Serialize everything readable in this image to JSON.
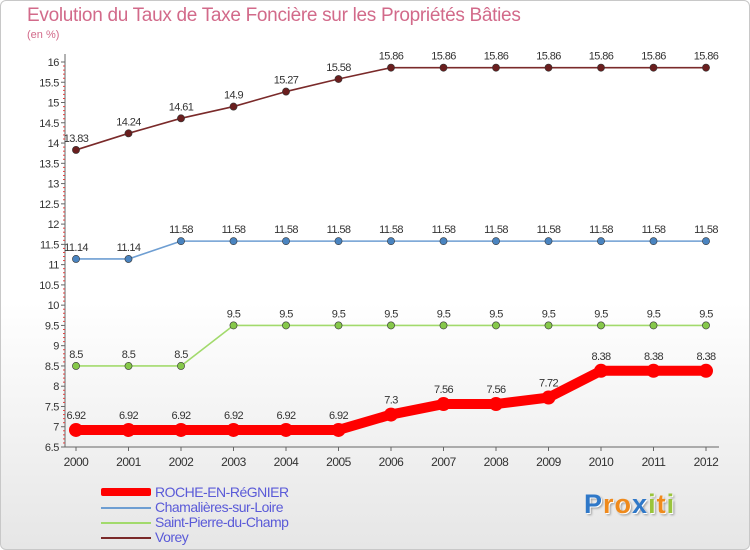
{
  "chart_data": {
    "type": "line",
    "title": "Evolution du Taux de Taxe Foncière sur les Propriétés Bâties",
    "ylabel": "(en %)",
    "xlabel": "",
    "x": [
      "2000",
      "2001",
      "2002",
      "2003",
      "2004",
      "2005",
      "2006",
      "2007",
      "2008",
      "2009",
      "2010",
      "2011",
      "2012"
    ],
    "ylim": [
      6.5,
      16
    ],
    "yticks": [
      "6.5",
      "7",
      "7.5",
      "8",
      "8.5",
      "9",
      "9.5",
      "10",
      "10.5",
      "11",
      "11.5",
      "12",
      "12.5",
      "13",
      "13.5",
      "14",
      "14.5",
      "15",
      "15.5",
      "16"
    ],
    "grid": false,
    "legend_position": "bottom-left",
    "series": [
      {
        "name": "ROCHE-EN-RéGNIER",
        "color": "#ff0000",
        "values": [
          6.92,
          6.92,
          6.92,
          6.92,
          6.92,
          6.92,
          7.3,
          7.56,
          7.56,
          7.72,
          8.38,
          8.38,
          8.38
        ],
        "labels": [
          "6.92",
          "6.92",
          "6.92",
          "6.92",
          "6.92",
          "6.92",
          "7.3",
          "7.56",
          "7.56",
          "7.72",
          "8.38",
          "8.38",
          "8.38"
        ]
      },
      {
        "name": "Chamalières-sur-Loire",
        "color": "#6e9ed2",
        "marker_color": "#4a84c0",
        "values": [
          11.14,
          11.14,
          11.58,
          11.58,
          11.58,
          11.58,
          11.58,
          11.58,
          11.58,
          11.58,
          11.58,
          11.58,
          11.58
        ],
        "labels": [
          "11.14",
          "11.14",
          "11.58",
          "11.58",
          "11.58",
          "11.58",
          "11.58",
          "11.58",
          "11.58",
          "11.58",
          "11.58",
          "11.58",
          "11.58"
        ]
      },
      {
        "name": "Saint-Pierre-du-Champ",
        "color": "#a2da6c",
        "marker_color": "#86c84a",
        "values": [
          8.5,
          8.5,
          8.5,
          9.5,
          9.5,
          9.5,
          9.5,
          9.5,
          9.5,
          9.5,
          9.5,
          9.5,
          9.5
        ],
        "labels": [
          "8.5",
          "8.5",
          "8.5",
          "9.5",
          "9.5",
          "9.5",
          "9.5",
          "9.5",
          "9.5",
          "9.5",
          "9.5",
          "9.5",
          "9.5"
        ]
      },
      {
        "name": "Vorey",
        "color": "#7a2a2a",
        "marker_color": "#6a1e1e",
        "values": [
          13.83,
          14.24,
          14.61,
          14.9,
          15.27,
          15.58,
          15.86,
          15.86,
          15.86,
          15.86,
          15.86,
          15.86,
          15.86
        ],
        "labels": [
          "13.83",
          "14.24",
          "14.61",
          "14.9",
          "15.27",
          "15.58",
          "15.86",
          "15.86",
          "15.86",
          "15.86",
          "15.86",
          "15.86",
          "15.86"
        ]
      }
    ]
  },
  "logo": {
    "letters": [
      "P",
      "r",
      "o",
      "x",
      "i",
      "t",
      "i"
    ],
    "colors": [
      "#2f78c8",
      "#ef8a1c",
      "#ef8a1c",
      "#2f78c8",
      "#9ac43c",
      "#ef8a1c",
      "#9ac43c"
    ]
  }
}
